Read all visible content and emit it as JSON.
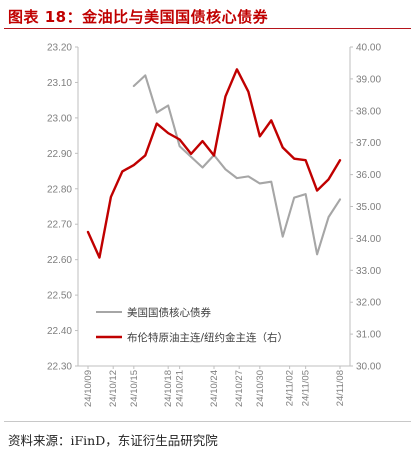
{
  "header": {
    "title": "图表 18：金油比与美国国债核心债券"
  },
  "footer": {
    "source": "资料来源：iFinD，东证衍生品研究院"
  },
  "chart_data": {
    "type": "line",
    "x": [
      "24/10/09",
      "24/10/10",
      "24/10/11",
      "24/10/14",
      "24/10/15",
      "24/10/16",
      "24/10/17",
      "24/10/18",
      "24/10/21",
      "24/10/22",
      "24/10/23",
      "24/10/24",
      "24/10/25",
      "24/10/28",
      "24/10/29",
      "24/10/30",
      "24/10/31",
      "24/11/01",
      "24/11/04",
      "24/11/05",
      "24/11/06",
      "24/11/07",
      "24/11/08"
    ],
    "x_tick_labels": [
      "24/10/09",
      "24/10/12",
      "24/10/15",
      "24/10/18",
      "24/10/21",
      "24/10/24",
      "24/10/27",
      "24/10/30",
      "24/11/02",
      "24/11/05",
      "24/11/08"
    ],
    "y_left": {
      "ticks": [
        "23.20",
        "23.10",
        "23.00",
        "22.90",
        "22.80",
        "22.70",
        "22.60",
        "22.50",
        "22.40",
        "22.30"
      ],
      "min": 22.3,
      "max": 23.2
    },
    "y_right": {
      "ticks": [
        "40.00",
        "39.00",
        "38.00",
        "37.00",
        "36.00",
        "35.00",
        "34.00",
        "33.00",
        "32.00",
        "31.00",
        "30.00"
      ],
      "min": 30.0,
      "max": 40.0
    },
    "series": [
      {
        "name": "美国国债核心债券",
        "axis": "left",
        "color": "#a6a6a6",
        "values": [
          null,
          null,
          null,
          null,
          23.09,
          23.12,
          23.015,
          23.035,
          22.92,
          22.89,
          22.86,
          22.895,
          22.855,
          22.83,
          22.835,
          22.815,
          22.82,
          22.665,
          22.775,
          22.785,
          22.615,
          22.72,
          22.77
        ]
      },
      {
        "name": "布伦特原油主连/纽约金主连（右）",
        "axis": "right",
        "color": "#c00000",
        "values": [
          34.2,
          33.4,
          35.3,
          36.1,
          36.3,
          36.6,
          37.6,
          37.3,
          37.1,
          36.65,
          37.05,
          36.6,
          38.45,
          39.3,
          38.6,
          37.2,
          37.7,
          36.85,
          36.5,
          36.45,
          35.5,
          35.85,
          36.45
        ]
      }
    ],
    "legend_position": "bottom-left"
  }
}
